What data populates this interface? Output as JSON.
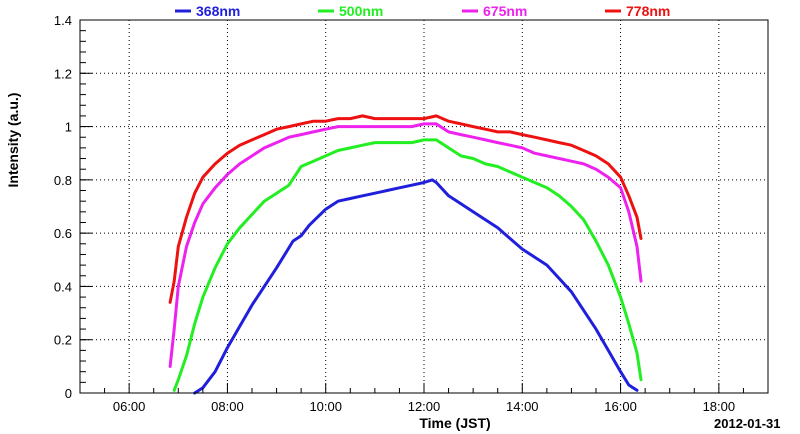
{
  "chart_data": {
    "type": "line",
    "xlabel": "Time (JST)",
    "ylabel": "Intensity (a.u.)",
    "date_label": "2012-01-31",
    "xlim": [
      "05:00",
      "19:00"
    ],
    "ylim": [
      0,
      1.4
    ],
    "x_ticks": [
      "06:00",
      "08:00",
      "10:00",
      "12:00",
      "14:00",
      "16:00",
      "18:00"
    ],
    "y_ticks": [
      "0",
      "0.2",
      "0.4",
      "0.6",
      "0.8",
      "1",
      "1.2",
      "1.4"
    ],
    "grid": true,
    "legend_position": "top",
    "series": [
      {
        "name": "368nm",
        "color": "#1f1fdc",
        "x": [
          "07:20",
          "07:30",
          "07:45",
          "08:00",
          "08:15",
          "08:30",
          "08:45",
          "09:00",
          "09:10",
          "09:20",
          "09:30",
          "09:40",
          "10:00",
          "10:15",
          "10:30",
          "10:45",
          "11:00",
          "11:15",
          "11:30",
          "11:45",
          "12:00",
          "12:10",
          "12:15",
          "12:30",
          "12:45",
          "13:00",
          "13:15",
          "13:30",
          "13:45",
          "14:00",
          "14:15",
          "14:30",
          "14:45",
          "15:00",
          "15:15",
          "15:30",
          "15:45",
          "16:00",
          "16:10",
          "16:20"
        ],
        "values": [
          0.0,
          0.02,
          0.08,
          0.17,
          0.25,
          0.33,
          0.4,
          0.47,
          0.52,
          0.57,
          0.59,
          0.63,
          0.69,
          0.72,
          0.73,
          0.74,
          0.75,
          0.76,
          0.77,
          0.78,
          0.79,
          0.8,
          0.79,
          0.74,
          0.71,
          0.68,
          0.65,
          0.62,
          0.58,
          0.54,
          0.51,
          0.48,
          0.43,
          0.38,
          0.31,
          0.24,
          0.16,
          0.08,
          0.03,
          0.01
        ]
      },
      {
        "name": "500nm",
        "color": "#22ee22",
        "x": [
          "06:55",
          "07:00",
          "07:10",
          "07:20",
          "07:30",
          "07:45",
          "08:00",
          "08:15",
          "08:30",
          "08:45",
          "09:00",
          "09:15",
          "09:30",
          "09:45",
          "10:00",
          "10:15",
          "10:30",
          "10:45",
          "11:00",
          "11:15",
          "11:30",
          "11:45",
          "12:00",
          "12:15",
          "12:30",
          "12:45",
          "13:00",
          "13:15",
          "13:30",
          "13:45",
          "14:00",
          "14:15",
          "14:30",
          "14:45",
          "15:00",
          "15:15",
          "15:30",
          "15:45",
          "16:00",
          "16:10",
          "16:20",
          "16:25"
        ],
        "values": [
          0.01,
          0.05,
          0.14,
          0.26,
          0.36,
          0.47,
          0.56,
          0.62,
          0.67,
          0.72,
          0.75,
          0.78,
          0.85,
          0.87,
          0.89,
          0.91,
          0.92,
          0.93,
          0.94,
          0.94,
          0.94,
          0.94,
          0.95,
          0.95,
          0.92,
          0.89,
          0.88,
          0.86,
          0.85,
          0.83,
          0.81,
          0.79,
          0.77,
          0.74,
          0.7,
          0.65,
          0.57,
          0.48,
          0.36,
          0.26,
          0.15,
          0.05
        ]
      },
      {
        "name": "675nm",
        "color": "#ee22ee",
        "x": [
          "06:50",
          "06:55",
          "07:00",
          "07:10",
          "07:20",
          "07:30",
          "07:45",
          "08:00",
          "08:15",
          "08:30",
          "08:45",
          "09:00",
          "09:15",
          "09:30",
          "09:45",
          "10:00",
          "10:15",
          "10:30",
          "10:45",
          "11:00",
          "11:15",
          "11:30",
          "11:45",
          "12:00",
          "12:15",
          "12:30",
          "12:45",
          "13:00",
          "13:15",
          "13:30",
          "13:45",
          "14:00",
          "14:15",
          "14:30",
          "14:45",
          "15:00",
          "15:15",
          "15:30",
          "15:45",
          "16:00",
          "16:10",
          "16:20",
          "16:25"
        ],
        "values": [
          0.1,
          0.24,
          0.4,
          0.55,
          0.64,
          0.71,
          0.77,
          0.82,
          0.86,
          0.89,
          0.92,
          0.94,
          0.96,
          0.97,
          0.98,
          0.99,
          1.0,
          1.0,
          1.0,
          1.0,
          1.0,
          1.0,
          1.0,
          1.01,
          1.01,
          0.98,
          0.97,
          0.96,
          0.95,
          0.94,
          0.93,
          0.92,
          0.9,
          0.89,
          0.88,
          0.87,
          0.86,
          0.84,
          0.81,
          0.77,
          0.68,
          0.55,
          0.42
        ]
      },
      {
        "name": "778nm",
        "color": "#ee1111",
        "x": [
          "06:50",
          "06:55",
          "07:00",
          "07:10",
          "07:20",
          "07:30",
          "07:45",
          "08:00",
          "08:15",
          "08:30",
          "08:45",
          "09:00",
          "09:15",
          "09:30",
          "09:45",
          "10:00",
          "10:15",
          "10:30",
          "10:45",
          "11:00",
          "11:15",
          "11:30",
          "11:45",
          "12:00",
          "12:15",
          "12:30",
          "12:45",
          "13:00",
          "13:15",
          "13:30",
          "13:45",
          "14:00",
          "14:15",
          "14:30",
          "14:45",
          "15:00",
          "15:15",
          "15:30",
          "15:45",
          "16:00",
          "16:10",
          "16:20",
          "16:25"
        ],
        "values": [
          0.34,
          0.42,
          0.55,
          0.66,
          0.75,
          0.81,
          0.86,
          0.9,
          0.93,
          0.95,
          0.97,
          0.99,
          1.0,
          1.01,
          1.02,
          1.02,
          1.03,
          1.03,
          1.04,
          1.03,
          1.03,
          1.03,
          1.03,
          1.03,
          1.04,
          1.02,
          1.01,
          1.0,
          0.99,
          0.98,
          0.98,
          0.97,
          0.96,
          0.95,
          0.94,
          0.93,
          0.91,
          0.89,
          0.86,
          0.81,
          0.74,
          0.66,
          0.58
        ]
      }
    ]
  }
}
